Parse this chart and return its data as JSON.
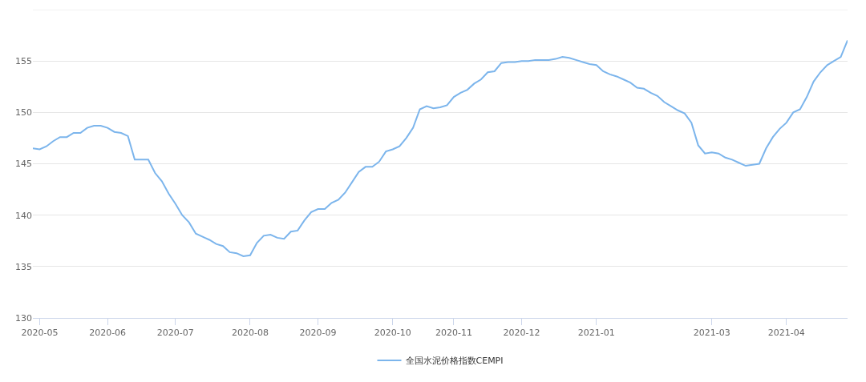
{
  "chart_data": {
    "type": "line",
    "categories": [
      null,
      "2020-05",
      null,
      null,
      null,
      null,
      null,
      null,
      null,
      null,
      null,
      "2020-06",
      null,
      null,
      null,
      null,
      null,
      null,
      null,
      null,
      null,
      "2020-07",
      null,
      null,
      null,
      null,
      null,
      null,
      null,
      null,
      null,
      null,
      "2020-08",
      null,
      null,
      null,
      null,
      null,
      null,
      null,
      null,
      null,
      "2020-09",
      null,
      null,
      null,
      null,
      null,
      null,
      null,
      null,
      null,
      null,
      "2020-10",
      null,
      null,
      null,
      null,
      null,
      null,
      null,
      null,
      "2020-11",
      null,
      null,
      null,
      null,
      null,
      null,
      null,
      null,
      null,
      "2020-12",
      null,
      null,
      null,
      null,
      null,
      null,
      null,
      null,
      null,
      null,
      "2021-01",
      null,
      null,
      null,
      null,
      null,
      null,
      null,
      null,
      null,
      null,
      null,
      null,
      null,
      null,
      null,
      null,
      "2021-03",
      null,
      null,
      null,
      null,
      null,
      null,
      null,
      null,
      null,
      null,
      "2021-04",
      null,
      null,
      null,
      null,
      null,
      null,
      null,
      null,
      null
    ],
    "series": [
      {
        "name": "全国水泥价格指数CEMPI",
        "color": "#7cb5ec",
        "values": [
          146.5,
          146.4,
          146.7,
          147.2,
          147.6,
          147.6,
          148,
          148,
          148.5,
          148.7,
          148.7,
          148.5,
          148.1,
          148,
          147.7,
          145.4,
          145.4,
          145.4,
          144.1,
          143.3,
          142.1,
          141.1,
          140,
          139.3,
          138.2,
          137.9,
          137.6,
          137.2,
          137,
          136.4,
          136.3,
          136,
          136.1,
          137.3,
          138,
          138.1,
          137.8,
          137.7,
          138.4,
          138.5,
          139.5,
          140.3,
          140.6,
          140.6,
          141.2,
          141.5,
          142.2,
          143.2,
          144.2,
          144.7,
          144.7,
          145.2,
          146.2,
          146.4,
          146.7,
          147.5,
          148.5,
          150.3,
          150.6,
          150.4,
          150.5,
          150.7,
          151.5,
          151.9,
          152.2,
          152.8,
          153.2,
          153.9,
          154,
          154.8,
          154.9,
          154.9,
          155,
          155,
          155.1,
          155.1,
          155.1,
          155.2,
          155.4,
          155.3,
          155.1,
          154.9,
          154.7,
          154.6,
          154,
          153.7,
          153.5,
          153.2,
          152.9,
          152.4,
          152.3,
          151.9,
          151.6,
          151,
          150.6,
          150.2,
          149.9,
          149,
          146.8,
          146,
          146.1,
          146,
          145.6,
          145.4,
          145.1,
          144.8,
          144.9,
          145,
          146.5,
          147.6,
          148.4,
          149,
          150,
          150.3,
          151.5,
          153,
          153.9,
          154.6,
          155,
          155.4,
          157
        ]
      }
    ],
    "ylim": [
      130,
      160
    ],
    "yticks": [
      130,
      135,
      140,
      145,
      150,
      155,
      {
        "value": 160,
        "label": null
      }
    ],
    "grid": "y",
    "legend": "bottom",
    "marker": "none",
    "line_style": "solid"
  }
}
